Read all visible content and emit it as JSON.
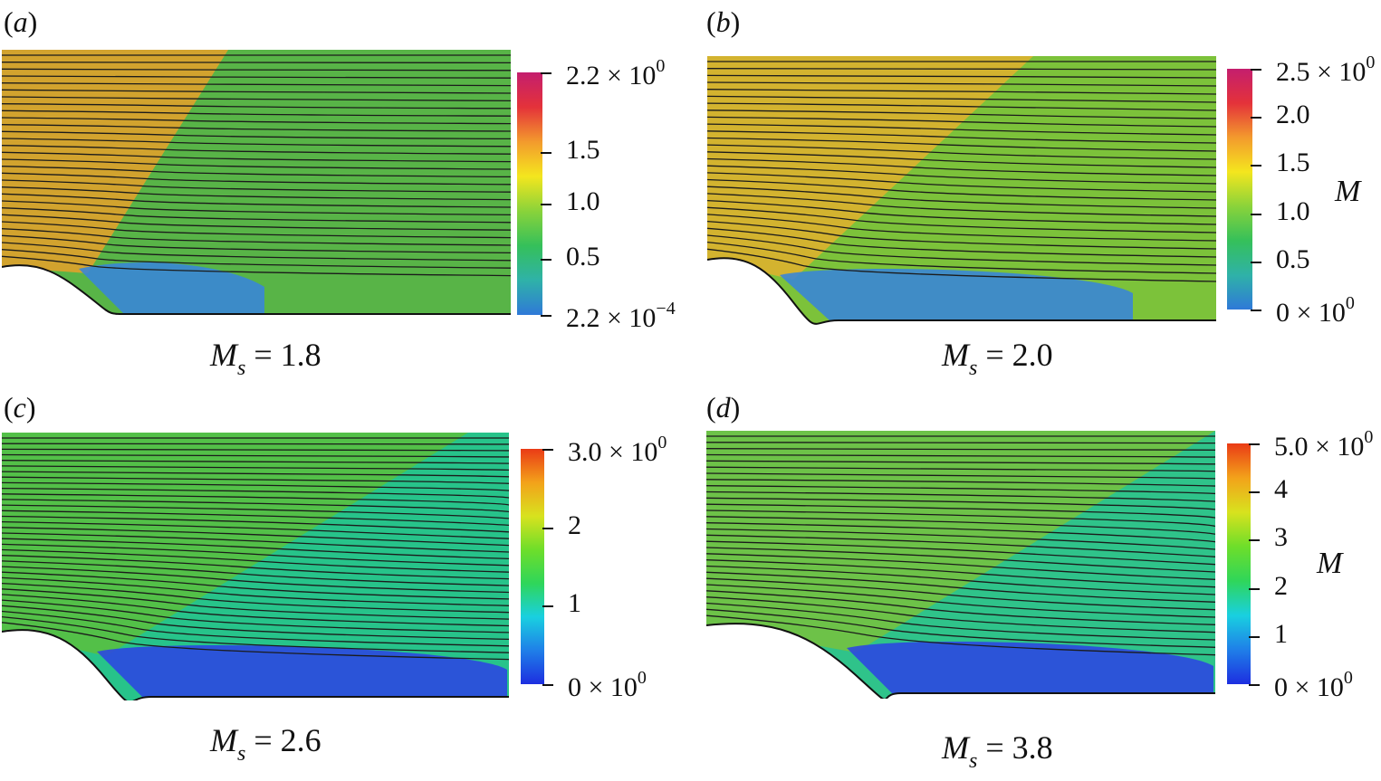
{
  "panels": [
    {
      "id": "a",
      "letter": "a",
      "caption_symbol": "M",
      "caption_sub": "s",
      "caption_value": "= 1.8",
      "variable_label": "",
      "colorbar": {
        "max_mantissa": "2.2 × 10",
        "max_exp": "0",
        "ticks": [
          "1.5",
          "1.0",
          "0.5"
        ],
        "min_mantissa": "2.2 × 10",
        "min_exp": "−4",
        "gradient": [
          "#2f79d8",
          "#2fb2a8",
          "#35c05a",
          "#8ad33a",
          "#f4e61e",
          "#f39a2d",
          "#e4323a",
          "#c41e6e"
        ]
      },
      "field_colors": {
        "upstream": "#e8a02a",
        "downstream": "#58b447",
        "separation": "#3a86d6"
      }
    },
    {
      "id": "b",
      "letter": "b",
      "caption_symbol": "M",
      "caption_sub": "s",
      "caption_value": "= 2.0",
      "variable_label": "M",
      "colorbar": {
        "max_mantissa": "2.5 × 10",
        "max_exp": "0",
        "ticks": [
          "2.0",
          "1.5",
          "1.0",
          "0.5"
        ],
        "min_mantissa": "0 × 10",
        "min_exp": "0",
        "gradient": [
          "#2f79d8",
          "#2fb2a8",
          "#35c05a",
          "#8ad33a",
          "#f4e61e",
          "#f39a2d",
          "#e4323a",
          "#c41e6e"
        ]
      },
      "field_colors": {
        "upstream": "#e3b02e",
        "downstream": "#7cc23a",
        "separation": "#3a86d6"
      }
    },
    {
      "id": "c",
      "letter": "c",
      "caption_symbol": "M",
      "caption_sub": "s",
      "caption_value": "= 2.6",
      "variable_label": "",
      "colorbar": {
        "max_mantissa": "3.0 × 10",
        "max_exp": "0",
        "ticks": [
          "2",
          "1"
        ],
        "min_mantissa": "0 × 10",
        "min_exp": "0",
        "gradient": [
          "#1d2ee0",
          "#1f7fe8",
          "#19d0e0",
          "#2fd65a",
          "#6ede2a",
          "#d8e21e",
          "#f3a21a",
          "#ea3b16"
        ]
      },
      "field_colors": {
        "upstream": "#5cbf3c",
        "downstream": "#27c38a",
        "separation": "#2c48e0"
      }
    },
    {
      "id": "d",
      "letter": "d",
      "caption_symbol": "M",
      "caption_sub": "s",
      "caption_value": "= 3.8",
      "variable_label": "M",
      "colorbar": {
        "max_mantissa": "5.0 × 10",
        "max_exp": "0",
        "ticks": [
          "4",
          "3",
          "2",
          "1"
        ],
        "min_mantissa": "0 × 10",
        "min_exp": "0",
        "gradient": [
          "#1d2ee0",
          "#1f7fe8",
          "#19d0e0",
          "#2fd65a",
          "#6ede2a",
          "#d8e21e",
          "#f3a21a",
          "#ea3b16"
        ]
      },
      "field_colors": {
        "upstream": "#78c23c",
        "downstream": "#2fc38a",
        "separation": "#2c48e0"
      }
    }
  ]
}
